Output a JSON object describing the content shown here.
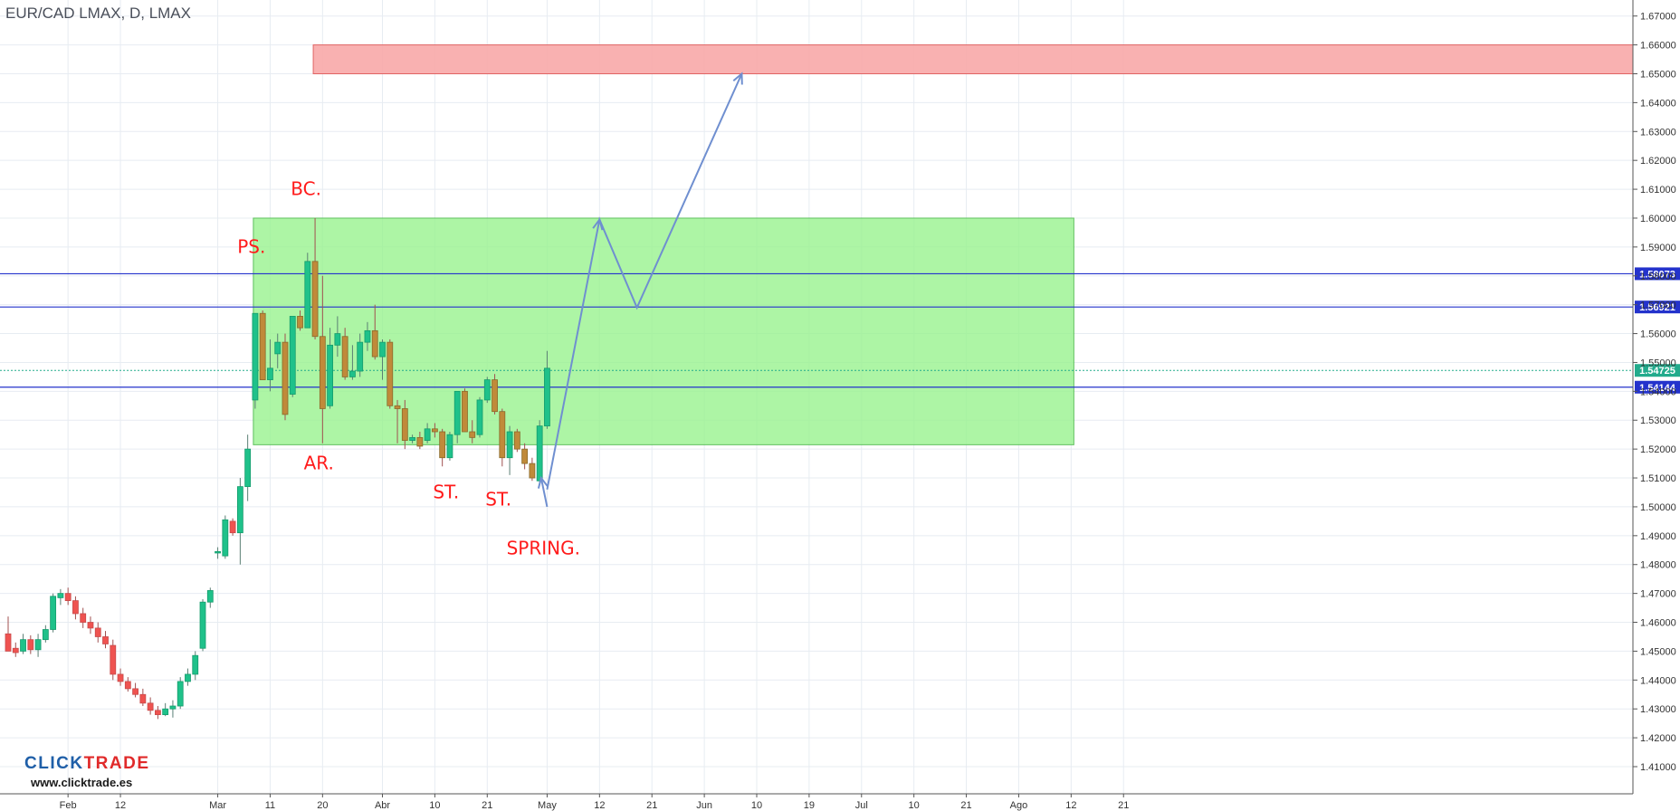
{
  "title": "EUR/CAD LMAX, D, LMAX",
  "brand": {
    "name_part1": "CLICK",
    "name_part2": "TRADE",
    "url": "www.clicktrade.es",
    "color1": "#1f5fa8",
    "color2": "#e02a2a"
  },
  "colors": {
    "up": "#26a69a",
    "up_fill": "#1fc18a",
    "down": "#ef5350",
    "range_zone": "#99f28e",
    "target_zone": "#f8a8a8",
    "level_line": "#2433cc",
    "arrow": "#6f8fd0",
    "annotation": "#ff1a1a",
    "badge": "#2433cc",
    "badge_current": "#22ab8c"
  },
  "chart_data": {
    "type": "candlestick",
    "title": "EUR/CAD LMAX, D, LMAX",
    "ylim": [
      1.4035,
      1.6725
    ],
    "y_ticks": [
      "1.41000",
      "1.42000",
      "1.43000",
      "1.44000",
      "1.45000",
      "1.46000",
      "1.47000",
      "1.48000",
      "1.49000",
      "1.50000",
      "1.51000",
      "1.52000",
      "1.53000",
      "1.54000",
      "1.55000",
      "1.56000",
      "1.57000",
      "1.58000",
      "1.59000",
      "1.60000",
      "1.61000",
      "1.62000",
      "1.63000",
      "1.64000",
      "1.65000",
      "1.66000",
      "1.67000"
    ],
    "x_ticks": [
      {
        "label": "Feb",
        "i": 8
      },
      {
        "label": "12",
        "i": 15
      },
      {
        "label": "Mar",
        "i": 28
      },
      {
        "label": "11",
        "i": 35
      },
      {
        "label": "20",
        "i": 42
      },
      {
        "label": "Abr",
        "i": 50
      },
      {
        "label": "10",
        "i": 57
      },
      {
        "label": "21",
        "i": 64
      },
      {
        "label": "May",
        "i": 72
      },
      {
        "label": "12",
        "i": 79
      },
      {
        "label": "21",
        "i": 86
      },
      {
        "label": "Jun",
        "i": 93
      },
      {
        "label": "10",
        "i": 100
      },
      {
        "label": "19",
        "i": 107
      },
      {
        "label": "Jul",
        "i": 114
      },
      {
        "label": "10",
        "i": 121
      },
      {
        "label": "21",
        "i": 128
      },
      {
        "label": "Ago",
        "i": 135
      },
      {
        "label": "12",
        "i": 142
      },
      {
        "label": "21",
        "i": 149
      }
    ],
    "candles": [
      [
        1.456,
        1.462,
        1.452,
        1.45
      ],
      [
        1.451,
        1.453,
        1.448,
        1.4495
      ],
      [
        1.45,
        1.456,
        1.449,
        1.454
      ],
      [
        1.454,
        1.4555,
        1.449,
        1.4505
      ],
      [
        1.4505,
        1.456,
        1.448,
        1.454
      ],
      [
        1.454,
        1.459,
        1.453,
        1.4575
      ],
      [
        1.4575,
        1.47,
        1.4565,
        1.469
      ],
      [
        1.4685,
        1.4715,
        1.466,
        1.47
      ],
      [
        1.47,
        1.472,
        1.466,
        1.4675
      ],
      [
        1.4675,
        1.469,
        1.461,
        1.463
      ],
      [
        1.463,
        1.465,
        1.458,
        1.46
      ],
      [
        1.46,
        1.462,
        1.456,
        1.458
      ],
      [
        1.458,
        1.46,
        1.453,
        1.455
      ],
      [
        1.455,
        1.457,
        1.451,
        1.4525
      ],
      [
        1.452,
        1.454,
        1.44,
        1.442
      ],
      [
        1.442,
        1.444,
        1.438,
        1.4395
      ],
      [
        1.4395,
        1.441,
        1.436,
        1.437
      ],
      [
        1.437,
        1.439,
        1.434,
        1.435
      ],
      [
        1.435,
        1.437,
        1.431,
        1.432
      ],
      [
        1.432,
        1.434,
        1.428,
        1.4295
      ],
      [
        1.4295,
        1.431,
        1.4265,
        1.428
      ],
      [
        1.428,
        1.432,
        1.4275,
        1.43
      ],
      [
        1.43,
        1.433,
        1.427,
        1.431
      ],
      [
        1.431,
        1.441,
        1.43,
        1.4395
      ],
      [
        1.4395,
        1.444,
        1.438,
        1.442
      ],
      [
        1.442,
        1.45,
        1.44,
        1.4485
      ],
      [
        1.451,
        1.468,
        1.45,
        1.467
      ],
      [
        1.467,
        1.472,
        1.465,
        1.471
      ],
      [
        1.484,
        1.486,
        1.482,
        1.4845
      ],
      [
        1.483,
        1.497,
        1.482,
        1.4955
      ],
      [
        1.495,
        1.496,
        1.49,
        1.491
      ],
      [
        1.491,
        1.51,
        1.48,
        1.507
      ],
      [
        1.507,
        1.525,
        1.502,
        1.52
      ],
      [
        1.537,
        1.567,
        1.534,
        1.567
      ],
      [
        1.567,
        1.568,
        1.544,
        1.544
      ],
      [
        1.544,
        1.558,
        1.54,
        1.548
      ],
      [
        1.553,
        1.56,
        1.548,
        1.557
      ],
      [
        1.557,
        1.56,
        1.53,
        1.532
      ],
      [
        1.539,
        1.566,
        1.538,
        1.566
      ],
      [
        1.566,
        1.568,
        1.561,
        1.562
      ],
      [
        1.562,
        1.588,
        1.562,
        1.585
      ],
      [
        1.585,
        1.6,
        1.558,
        1.559
      ],
      [
        1.559,
        1.58,
        1.522,
        1.534
      ],
      [
        1.535,
        1.562,
        1.534,
        1.556
      ],
      [
        1.556,
        1.566,
        1.552,
        1.56
      ],
      [
        1.559,
        1.562,
        1.544,
        1.545
      ],
      [
        1.545,
        1.556,
        1.544,
        1.547
      ],
      [
        1.547,
        1.56,
        1.545,
        1.557
      ],
      [
        1.557,
        1.564,
        1.554,
        1.561
      ],
      [
        1.561,
        1.57,
        1.551,
        1.552
      ],
      [
        1.552,
        1.558,
        1.544,
        1.557
      ],
      [
        1.557,
        1.558,
        1.534,
        1.535
      ],
      [
        1.535,
        1.537,
        1.522,
        1.534
      ],
      [
        1.534,
        1.537,
        1.52,
        1.523
      ],
      [
        1.523,
        1.525,
        1.522,
        1.524
      ],
      [
        1.524,
        1.526,
        1.52,
        1.521
      ],
      [
        1.523,
        1.529,
        1.522,
        1.527
      ],
      [
        1.527,
        1.529,
        1.524,
        1.526
      ],
      [
        1.526,
        1.527,
        1.514,
        1.517
      ],
      [
        1.517,
        1.526,
        1.516,
        1.525
      ],
      [
        1.525,
        1.54,
        1.522,
        1.54
      ],
      [
        1.54,
        1.541,
        1.526,
        1.526
      ],
      [
        1.526,
        1.53,
        1.522,
        1.524
      ],
      [
        1.525,
        1.538,
        1.524,
        1.537
      ],
      [
        1.537,
        1.545,
        1.536,
        1.544
      ],
      [
        1.544,
        1.546,
        1.532,
        1.533
      ],
      [
        1.533,
        1.534,
        1.514,
        1.517
      ],
      [
        1.517,
        1.528,
        1.511,
        1.526
      ],
      [
        1.526,
        1.527,
        1.519,
        1.52
      ],
      [
        1.52,
        1.522,
        1.513,
        1.515
      ],
      [
        1.515,
        1.517,
        1.509,
        1.51
      ],
      [
        1.509,
        1.53,
        1.508,
        1.528
      ],
      [
        1.528,
        1.554,
        1.527,
        1.548
      ]
    ],
    "levels": [
      {
        "value": 1.58073,
        "label": "1.58073"
      },
      {
        "value": 1.56921,
        "label": "1.56921"
      },
      {
        "value": 1.54144,
        "label": "1.54144"
      }
    ],
    "current_price": {
      "value": 1.54725,
      "label": "1.54725"
    },
    "zones": [
      {
        "name": "trading-range",
        "i0": 33,
        "i1": 142,
        "y0": 1.5215,
        "y1": 1.6
      },
      {
        "name": "target",
        "i0": 41,
        "i1": 149,
        "y0": 1.65,
        "y1": 1.66
      }
    ],
    "arrow_path": [
      [
        72,
        1.506
      ],
      [
        79,
        1.5995
      ],
      [
        84,
        1.569
      ],
      [
        98,
        1.65
      ]
    ],
    "spring_pointer": [
      [
        72,
        1.5
      ],
      [
        71.2,
        1.51
      ]
    ],
    "annotations": [
      {
        "text": "PS.",
        "i": 32.5,
        "y": 1.588
      },
      {
        "text": "BC.",
        "i": 39.8,
        "y": 1.608
      },
      {
        "text": "AR.",
        "i": 41.5,
        "y": 1.513
      },
      {
        "text": "ST.",
        "i": 58.5,
        "y": 1.503
      },
      {
        "text": "ST.",
        "i": 65.5,
        "y": 1.5005
      },
      {
        "text": "SPRING.",
        "i": 71.5,
        "y": 1.4835
      }
    ]
  }
}
